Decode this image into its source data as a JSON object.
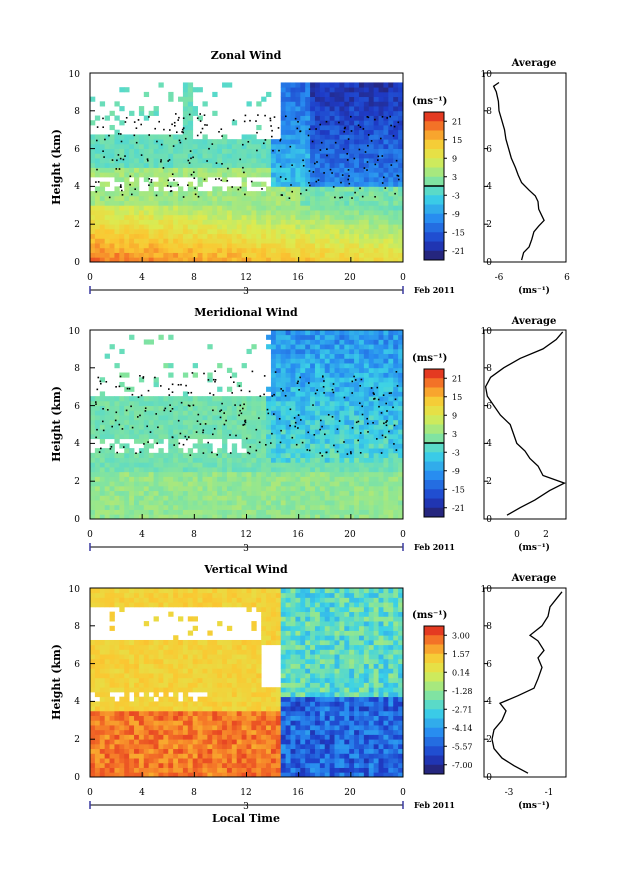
{
  "chart_data": [
    {
      "type": "heatmap",
      "title": "Zonal Wind",
      "ylabel": "Height (km)",
      "ylim": [
        0,
        10
      ],
      "xlim": [
        0,
        24
      ],
      "x_ticks": [
        "0",
        "4",
        "8",
        "12",
        "16",
        "20",
        "0"
      ],
      "y_ticks": [
        "0",
        "2",
        "4",
        "6",
        "8",
        "10"
      ],
      "date_mark": "3",
      "date_label": "Feb 2011",
      "colorbar": {
        "unit": "(ms⁻¹)",
        "ticks": [
          "21",
          "15",
          "9",
          "3",
          "-3",
          "-9",
          "-15",
          "-21"
        ],
        "min": -24,
        "max": 24
      },
      "profile": {
        "title": "Average",
        "xlabel": "(ms⁻¹)",
        "x_ticks": [
          "-6",
          "6"
        ],
        "xlim": [
          -6,
          6
        ],
        "points": [
          [
            -0.5,
            0.1
          ],
          [
            -0.2,
            0.5
          ],
          [
            0.6,
            0.8
          ],
          [
            1.0,
            1.2
          ],
          [
            1.3,
            1.6
          ],
          [
            2.0,
            1.9
          ],
          [
            2.8,
            2.2
          ],
          [
            2.4,
            2.5
          ],
          [
            2.0,
            2.8
          ],
          [
            1.9,
            3.2
          ],
          [
            1.5,
            3.5
          ],
          [
            0.6,
            3.8
          ],
          [
            -0.5,
            4.2
          ],
          [
            -1.0,
            4.6
          ],
          [
            -1.4,
            5.0
          ],
          [
            -2.0,
            5.5
          ],
          [
            -2.4,
            6.0
          ],
          [
            -2.8,
            6.5
          ],
          [
            -3.0,
            7.0
          ],
          [
            -3.4,
            7.5
          ],
          [
            -3.8,
            8.0
          ],
          [
            -3.9,
            8.5
          ],
          [
            -4.2,
            9.0
          ],
          [
            -4.6,
            9.3
          ],
          [
            -3.8,
            9.5
          ]
        ]
      }
    },
    {
      "type": "heatmap",
      "title": "Meridional Wind",
      "ylabel": "Height (km)",
      "ylim": [
        0,
        10
      ],
      "xlim": [
        0,
        24
      ],
      "x_ticks": [
        "0",
        "4",
        "8",
        "12",
        "16",
        "20",
        "0"
      ],
      "y_ticks": [
        "0",
        "2",
        "4",
        "6",
        "8",
        "10"
      ],
      "date_mark": "3",
      "date_label": "Feb 2011",
      "colorbar": {
        "unit": "(ms⁻¹)",
        "ticks": [
          "21",
          "15",
          "9",
          "3",
          "-3",
          "-9",
          "-15",
          "-21"
        ],
        "min": -24,
        "max": 24
      },
      "profile": {
        "title": "Average",
        "xlabel": "(ms⁻¹)",
        "x_ticks": [
          "0",
          "2"
        ],
        "xlim": [
          -1.6,
          3.4
        ],
        "points": [
          [
            -0.2,
            0.2
          ],
          [
            0.6,
            0.6
          ],
          [
            1.5,
            1.0
          ],
          [
            2.4,
            1.5
          ],
          [
            3.3,
            1.9
          ],
          [
            2.0,
            2.3
          ],
          [
            1.7,
            2.8
          ],
          [
            1.2,
            3.2
          ],
          [
            0.9,
            3.6
          ],
          [
            0.4,
            4.0
          ],
          [
            0.2,
            4.5
          ],
          [
            0.0,
            5.0
          ],
          [
            -0.6,
            5.5
          ],
          [
            -1.0,
            6.0
          ],
          [
            -1.4,
            6.5
          ],
          [
            -1.5,
            7.0
          ],
          [
            -1.2,
            7.5
          ],
          [
            -0.4,
            8.0
          ],
          [
            0.6,
            8.5
          ],
          [
            2.0,
            9.0
          ],
          [
            2.8,
            9.5
          ],
          [
            3.2,
            9.9
          ]
        ]
      }
    },
    {
      "type": "heatmap",
      "title": "Vertical Wind",
      "ylabel": "Height (km)",
      "xlabel": "Local Time",
      "ylim": [
        0,
        10
      ],
      "xlim": [
        0,
        24
      ],
      "x_ticks": [
        "0",
        "4",
        "8",
        "12",
        "16",
        "20",
        "0"
      ],
      "y_ticks": [
        "0",
        "2",
        "4",
        "6",
        "8",
        "10"
      ],
      "date_mark": "3",
      "date_label": "Feb 2011",
      "colorbar": {
        "unit": "(ms⁻¹)",
        "ticks": [
          "3.00",
          "1.57",
          "0.14",
          "-1.28",
          "-2.71",
          "-4.14",
          "-5.57",
          "-7.00"
        ],
        "min": -7.7,
        "max": 3.7
      },
      "profile": {
        "title": "Average",
        "xlabel": "(ms⁻¹)",
        "x_ticks": [
          "-3",
          "-1"
        ],
        "xlim": [
          -3.5,
          0.6
        ],
        "points": [
          [
            -1.3,
            0.2
          ],
          [
            -2.0,
            0.6
          ],
          [
            -2.6,
            1.0
          ],
          [
            -3.0,
            1.5
          ],
          [
            -3.1,
            2.0
          ],
          [
            -3.0,
            2.5
          ],
          [
            -2.6,
            3.0
          ],
          [
            -2.4,
            3.5
          ],
          [
            -2.7,
            3.9
          ],
          [
            -1.8,
            4.3
          ],
          [
            -1.0,
            4.7
          ],
          [
            -0.8,
            5.2
          ],
          [
            -0.6,
            5.8
          ],
          [
            -0.8,
            6.3
          ],
          [
            -0.5,
            6.7
          ],
          [
            -0.8,
            7.2
          ],
          [
            -1.2,
            7.5
          ],
          [
            -0.6,
            8.0
          ],
          [
            -0.3,
            8.5
          ],
          [
            -0.2,
            9.0
          ],
          [
            0.1,
            9.4
          ],
          [
            0.4,
            9.8
          ]
        ]
      }
    }
  ]
}
